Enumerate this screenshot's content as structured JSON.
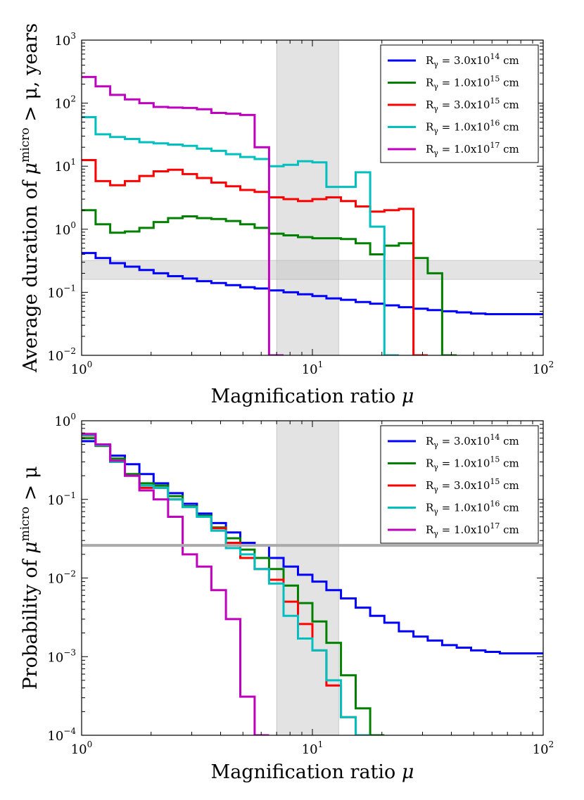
{
  "chart_data": [
    {
      "type": "line",
      "step": true,
      "title": "",
      "xscale": "log",
      "yscale": "log",
      "xlim": [
        1,
        100
      ],
      "ylim": [
        0.01,
        1000
      ],
      "xlabel": "Magnification ratio",
      "xlabel_symbol": "μ",
      "ylabel_prefix": "Average duration of",
      "ylabel_symbol": "μ",
      "ylabel_sup": "micro",
      "ylabel_suffix": "> μ,  years",
      "x_ticks": [
        {
          "value": 1,
          "base": "10",
          "exp": "0"
        },
        {
          "value": 10,
          "base": "10",
          "exp": "1"
        },
        {
          "value": 100,
          "base": "10",
          "exp": "2"
        }
      ],
      "y_ticks": [
        {
          "value": 0.01,
          "base": "10",
          "exp": "−2"
        },
        {
          "value": 0.1,
          "base": "10",
          "exp": "−1"
        },
        {
          "value": 1,
          "base": "10",
          "exp": "0"
        },
        {
          "value": 10,
          "base": "10",
          "exp": "1"
        },
        {
          "value": 100,
          "base": "10",
          "exp": "2"
        },
        {
          "value": 1000,
          "base": "10",
          "exp": "3"
        }
      ],
      "shaded_regions": [
        {
          "axis": "x",
          "from": 7,
          "to": 13,
          "color": "#c8c8c8",
          "opacity": 0.5
        },
        {
          "axis": "y",
          "from": 0.16,
          "to": 0.32,
          "color": "#c8c8c8",
          "opacity": 0.5
        }
      ],
      "legend_position": "top-right",
      "bin_edges": [
        1.0,
        1.15,
        1.33,
        1.54,
        1.78,
        2.05,
        2.37,
        2.74,
        3.16,
        3.65,
        4.22,
        4.87,
        5.62,
        6.49,
        7.5,
        8.66,
        10.0,
        11.5,
        13.3,
        15.4,
        17.8,
        20.5,
        23.7,
        27.4,
        31.6,
        36.5,
        42.2,
        48.7,
        56.2,
        64.9,
        75.0,
        86.6,
        100.0
      ],
      "series": [
        {
          "name": "3.0x10",
          "exp": "14",
          "color": "#0000ff",
          "values": [
            0.42,
            0.35,
            0.29,
            0.255,
            0.225,
            0.2,
            0.18,
            0.165,
            0.15,
            0.14,
            0.13,
            0.12,
            0.115,
            0.107,
            0.1,
            0.093,
            0.087,
            0.08,
            0.076,
            0.07,
            0.066,
            0.062,
            0.058,
            0.055,
            0.052,
            0.05,
            0.048,
            0.046,
            0.045,
            0.045,
            0.045,
            0.045
          ]
        },
        {
          "name": "1.0x10",
          "exp": "15",
          "color": "#008000",
          "values": [
            2.0,
            1.2,
            0.88,
            0.92,
            1.05,
            1.3,
            1.5,
            1.6,
            1.5,
            1.45,
            1.35,
            1.2,
            1.05,
            0.85,
            0.8,
            0.75,
            0.72,
            0.72,
            0.7,
            0.6,
            0.4,
            0.55,
            0.6,
            0.35,
            0.2,
            0.0001,
            null,
            null,
            null,
            null,
            null,
            null
          ]
        },
        {
          "name": "3.0x10",
          "exp": "15",
          "color": "#ff0000",
          "values": [
            12.5,
            5.8,
            5.0,
            5.8,
            7.0,
            8.3,
            8.8,
            7.5,
            6.5,
            5.5,
            4.8,
            4.2,
            3.9,
            3.2,
            3.0,
            2.8,
            3.0,
            3.2,
            2.8,
            2.3,
            1.9,
            2.0,
            2.1,
            0.0001,
            null,
            null,
            null,
            null,
            null,
            null,
            null,
            null
          ]
        },
        {
          "name": "1.0x10",
          "exp": "16",
          "color": "#00bfbf",
          "values": [
            60,
            32,
            29,
            27,
            24,
            23,
            22,
            21,
            19,
            17.5,
            15.5,
            14,
            13,
            10,
            10.5,
            12,
            11.5,
            4.7,
            4.7,
            8.0,
            1.1,
            0.0001,
            null,
            null,
            null,
            null,
            null,
            null,
            null,
            null,
            null,
            null
          ]
        },
        {
          "name": "1.0x10",
          "exp": "17",
          "color": "#bf00bf",
          "values": [
            260,
            185,
            135,
            115,
            100,
            87,
            85,
            84,
            80,
            70,
            68,
            65,
            20,
            0.0001,
            null,
            null,
            null,
            null,
            null,
            null,
            null,
            null,
            null,
            null,
            null,
            null,
            null,
            null,
            null,
            null,
            null,
            null
          ]
        }
      ]
    },
    {
      "type": "line",
      "step": true,
      "title": "",
      "xscale": "log",
      "yscale": "log",
      "xlim": [
        1,
        100
      ],
      "ylim": [
        0.0001,
        1
      ],
      "xlabel": "Magnification ratio",
      "xlabel_symbol": "μ",
      "ylabel_prefix": "Probability of",
      "ylabel_symbol": "μ",
      "ylabel_sup": "micro",
      "ylabel_suffix": "> μ",
      "x_ticks": [
        {
          "value": 1,
          "base": "10",
          "exp": "0"
        },
        {
          "value": 10,
          "base": "10",
          "exp": "1"
        },
        {
          "value": 100,
          "base": "10",
          "exp": "2"
        }
      ],
      "y_ticks": [
        {
          "value": 0.0001,
          "base": "10",
          "exp": "−4"
        },
        {
          "value": 0.001,
          "base": "10",
          "exp": "−3"
        },
        {
          "value": 0.01,
          "base": "10",
          "exp": "−2"
        },
        {
          "value": 0.1,
          "base": "10",
          "exp": "−1"
        },
        {
          "value": 1,
          "base": "10",
          "exp": "0"
        }
      ],
      "shaded_regions": [
        {
          "axis": "x",
          "from": 7,
          "to": 13,
          "color": "#c8c8c8",
          "opacity": 0.5
        }
      ],
      "reference_lines": [
        {
          "axis": "y",
          "value": 0.026,
          "color": "#aaaaaa"
        }
      ],
      "legend_position": "top-right",
      "bin_edges": [
        1.0,
        1.15,
        1.33,
        1.54,
        1.78,
        2.05,
        2.37,
        2.74,
        3.16,
        3.65,
        4.22,
        4.87,
        5.62,
        6.49,
        7.5,
        8.66,
        10.0,
        11.5,
        13.3,
        15.4,
        17.8,
        20.5,
        23.7,
        27.4,
        31.6,
        36.5,
        42.2,
        48.7,
        56.2,
        64.9,
        75.0,
        86.6,
        100.0
      ],
      "series": [
        {
          "name": "3.0x10",
          "exp": "14",
          "color": "#0000ff",
          "values": [
            0.55,
            0.48,
            0.36,
            0.28,
            0.21,
            0.16,
            0.12,
            0.088,
            0.066,
            0.05,
            0.038,
            0.028,
            0.026,
            0.018,
            0.014,
            0.011,
            0.009,
            0.007,
            0.0055,
            0.0042,
            0.0033,
            0.0027,
            0.0021,
            0.0018,
            0.0016,
            0.0014,
            0.0013,
            0.0012,
            0.00115,
            0.0011,
            0.0011,
            0.0011
          ]
        },
        {
          "name": "1.0x10",
          "exp": "15",
          "color": "#008000",
          "values": [
            0.6,
            0.48,
            0.33,
            0.21,
            0.16,
            0.15,
            0.11,
            0.082,
            0.062,
            0.044,
            0.032,
            0.023,
            0.018,
            0.013,
            0.008,
            0.0048,
            0.0028,
            0.0015,
            0.00058,
            0.00022,
            1e-05,
            null,
            null,
            null,
            null,
            null,
            null,
            null,
            null,
            null,
            null,
            null
          ]
        },
        {
          "name": "3.0x10",
          "exp": "15",
          "color": "#ff0000",
          "values": [
            0.65,
            0.49,
            0.3,
            0.2,
            0.14,
            0.14,
            0.1,
            0.08,
            0.06,
            0.043,
            0.028,
            0.018,
            0.013,
            0.0095,
            0.005,
            0.0026,
            0.0012,
            0.00043,
            0.00017,
            1e-05,
            null,
            null,
            null,
            null,
            null,
            null,
            null,
            null,
            null,
            null,
            null,
            null
          ]
        },
        {
          "name": "1.0x10",
          "exp": "16",
          "color": "#00bfbf",
          "values": [
            0.66,
            0.49,
            0.3,
            0.2,
            0.15,
            0.14,
            0.1,
            0.08,
            0.06,
            0.04,
            0.024,
            0.02,
            0.013,
            0.0085,
            0.0033,
            0.0017,
            0.0012,
            0.0005,
            0.00017,
            1e-05,
            null,
            null,
            null,
            null,
            null,
            null,
            null,
            null,
            null,
            null,
            null,
            null
          ]
        },
        {
          "name": "1.0x10",
          "exp": "17",
          "color": "#bf00bf",
          "values": [
            0.68,
            0.5,
            0.31,
            0.2,
            0.13,
            0.1,
            0.06,
            0.02,
            0.014,
            0.007,
            0.003,
            0.00031,
            1e-05,
            null,
            null,
            null,
            null,
            null,
            null,
            null,
            null,
            null,
            null,
            null,
            null,
            null,
            null,
            null,
            null,
            null,
            null,
            null
          ]
        }
      ]
    }
  ]
}
